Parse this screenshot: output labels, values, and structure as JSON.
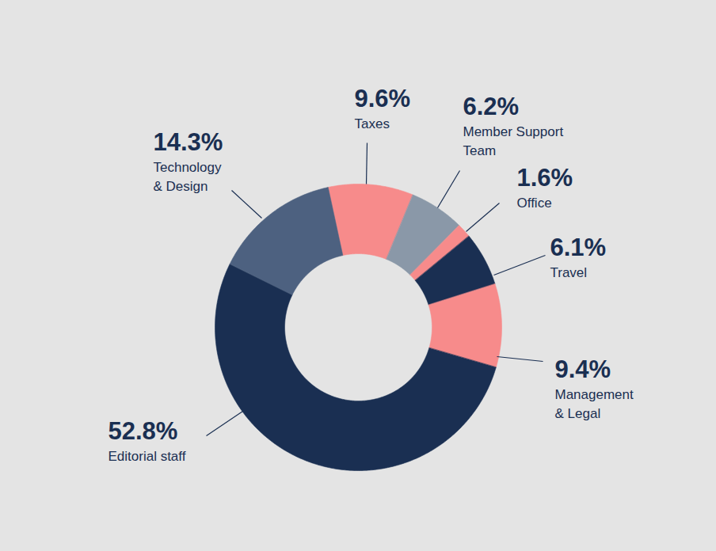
{
  "chart_data": {
    "type": "donut",
    "categories": [
      "Taxes",
      "Member Support\nTeam",
      "Office",
      "Travel",
      "Management\n& Legal",
      "Editorial staff",
      "Technology\n& Design"
    ],
    "values": [
      9.6,
      6.2,
      1.6,
      6.1,
      9.4,
      52.8,
      14.3
    ],
    "value_labels": [
      "9.6%",
      "6.2%",
      "1.6%",
      "6.1%",
      "9.4%",
      "52.8%",
      "14.3%"
    ],
    "colors": [
      "#f78b8b",
      "#8a98a8",
      "#f78b8b",
      "#1a2f52",
      "#f78b8b",
      "#1a2f52",
      "#4d6180"
    ],
    "data_labels": true
  }
}
